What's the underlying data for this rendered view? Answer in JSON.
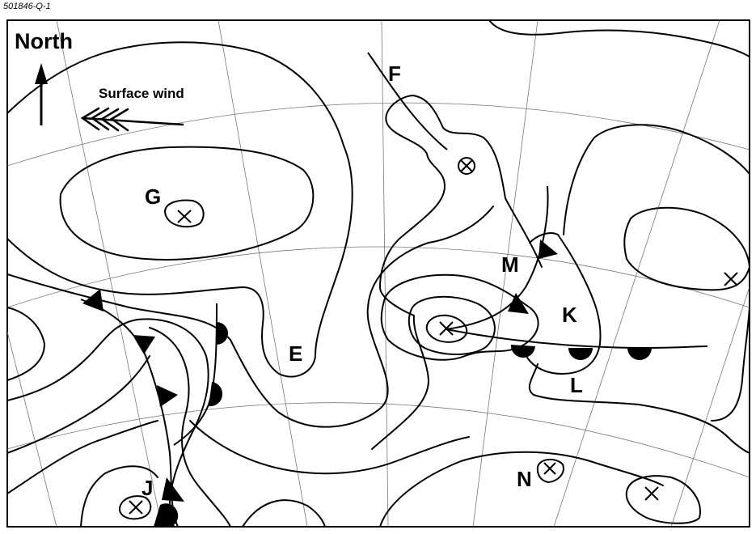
{
  "question_id": "501846-Q-1",
  "north_label": "North",
  "surface_wind_label": "Surface wind",
  "point_labels": {
    "E": "E",
    "F": "F",
    "G": "G",
    "J": "J",
    "K": "K",
    "L": "L",
    "M": "M",
    "N": "N"
  },
  "colors": {
    "lines": "#000000",
    "graticule": "#777777",
    "background": "#ffffff"
  },
  "symbols": [
    "north-arrow-icon",
    "wind-arrow-icon",
    "low-centre-cross-icon",
    "high-centre-circled-cross-icon",
    "cold-front",
    "warm-front",
    "occluded-front"
  ]
}
